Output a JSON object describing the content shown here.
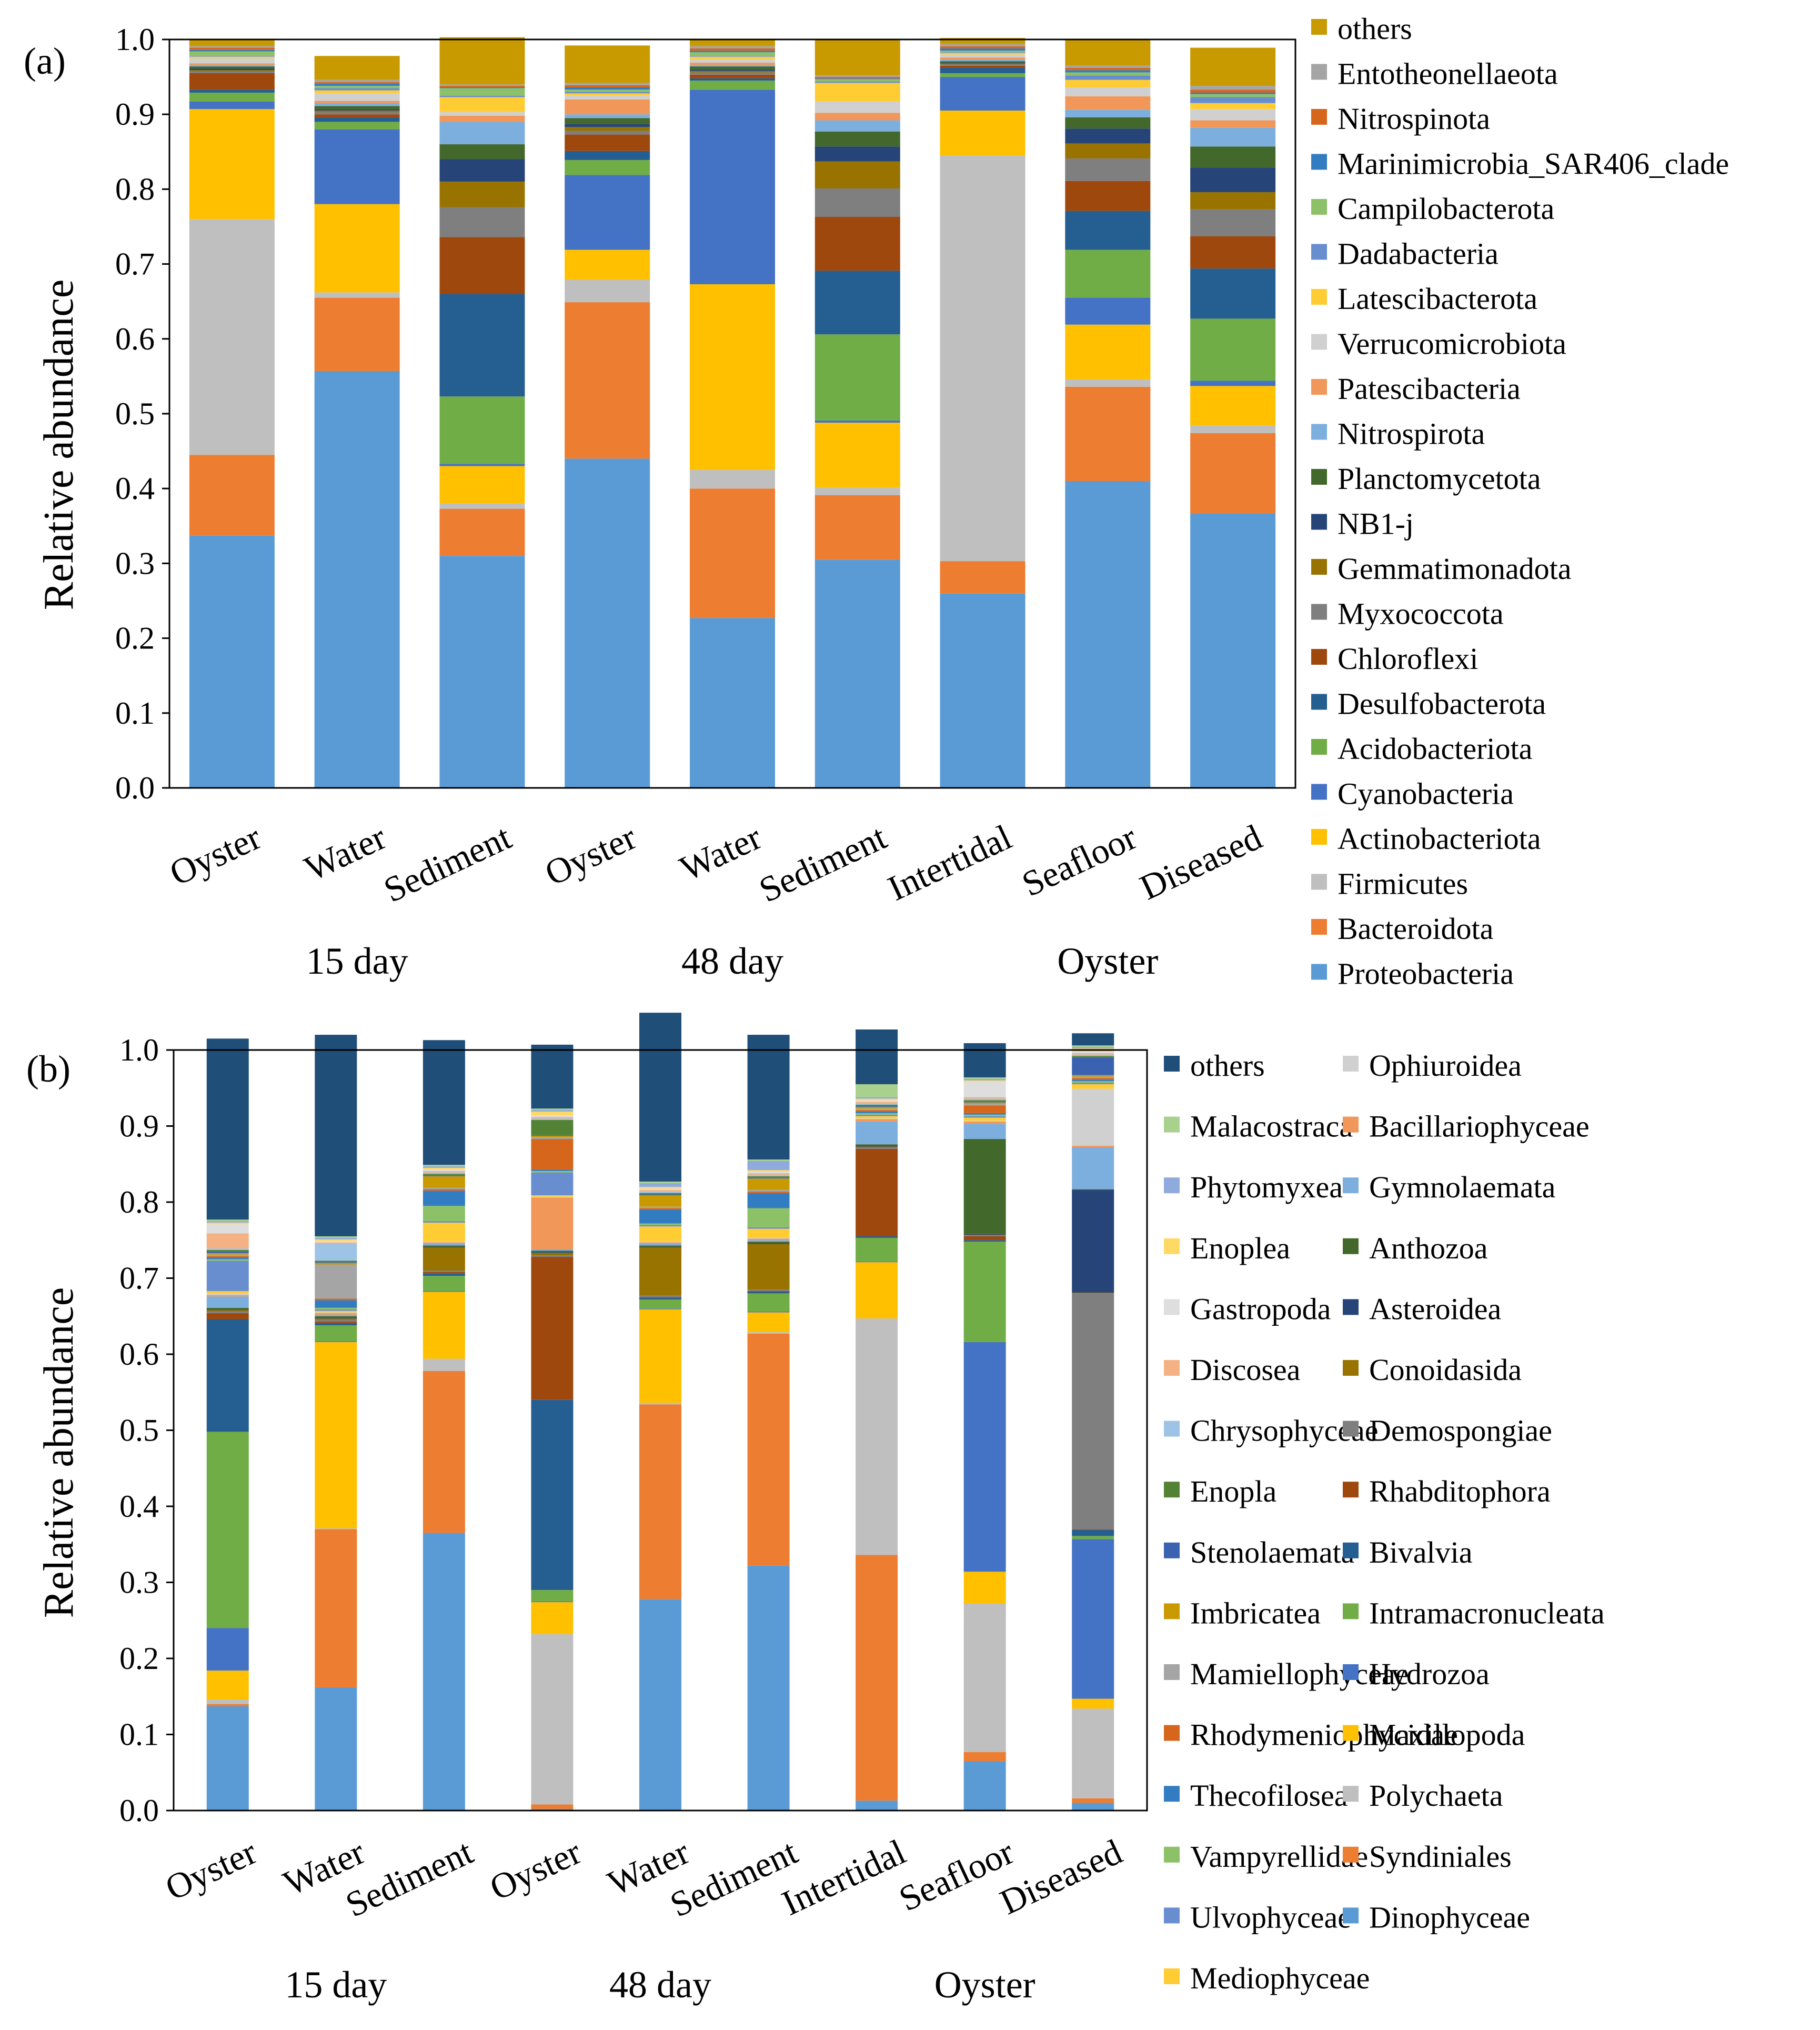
{
  "chart_data": [
    {
      "panel_label": "(a)",
      "type": "bar",
      "stacked": true,
      "ylabel": "Relative abundance",
      "ylim": [
        0,
        1.0
      ],
      "yticks": [
        "0.0",
        "0.1",
        "0.2",
        "0.3",
        "0.4",
        "0.5",
        "0.6",
        "0.7",
        "0.8",
        "0.9",
        "1.0"
      ],
      "categories": [
        "Oyster",
        "Water",
        "Sediment",
        "Oyster",
        "Water",
        "Sediment",
        "Intertidal",
        "Seafloor",
        "Diseased"
      ],
      "groups": [
        {
          "label": "15 day",
          "members": [
            0,
            1,
            2
          ]
        },
        {
          "label": "48 day",
          "members": [
            3,
            4,
            5
          ]
        },
        {
          "label": "Oyster",
          "members": [
            6,
            7,
            8
          ]
        }
      ],
      "series": [
        {
          "name": "Proteobacteria",
          "color": "#5b9bd5",
          "values": [
            0.337,
            0.557,
            0.31,
            0.44,
            0.227,
            0.305,
            0.26,
            0.41,
            0.367
          ]
        },
        {
          "name": "Bacteroidota",
          "color": "#ed7d31",
          "values": [
            0.108,
            0.098,
            0.063,
            0.209,
            0.173,
            0.086,
            0.043,
            0.126,
            0.107
          ]
        },
        {
          "name": "Firmicutes",
          "color": "#bfbfbf",
          "values": [
            0.315,
            0.007,
            0.007,
            0.03,
            0.025,
            0.01,
            0.542,
            0.01,
            0.01
          ]
        },
        {
          "name": "Actinobacteriota",
          "color": "#ffc000",
          "values": [
            0.147,
            0.118,
            0.05,
            0.04,
            0.248,
            0.087,
            0.06,
            0.073,
            0.053
          ]
        },
        {
          "name": "Cyanobacteria",
          "color": "#4472c4",
          "values": [
            0.01,
            0.1,
            0.003,
            0.1,
            0.26,
            0.003,
            0.045,
            0.036,
            0.007
          ]
        },
        {
          "name": "Acidobacteriota",
          "color": "#70ad47",
          "values": [
            0.012,
            0.01,
            0.09,
            0.02,
            0.012,
            0.115,
            0.005,
            0.064,
            0.083
          ]
        },
        {
          "name": "Desulfobacterota",
          "color": "#255e91",
          "values": [
            0.004,
            0.006,
            0.137,
            0.012,
            0.003,
            0.085,
            0.007,
            0.052,
            0.067
          ]
        },
        {
          "name": "Chloroflexi",
          "color": "#9e480e",
          "values": [
            0.022,
            0.004,
            0.076,
            0.022,
            0.005,
            0.072,
            0.003,
            0.04,
            0.043
          ]
        },
        {
          "name": "Myxococcota",
          "color": "#7f7f7f",
          "values": [
            0.002,
            0.003,
            0.04,
            0.005,
            0.003,
            0.038,
            0.002,
            0.03,
            0.036
          ]
        },
        {
          "name": "Gemmatimonadota",
          "color": "#997300",
          "values": [
            0.002,
            0.002,
            0.034,
            0.005,
            0.002,
            0.036,
            0.001,
            0.02,
            0.023
          ]
        },
        {
          "name": "NB1-j",
          "color": "#264478",
          "values": [
            0.002,
            0.002,
            0.03,
            0.004,
            0.002,
            0.02,
            0.001,
            0.02,
            0.033
          ]
        },
        {
          "name": "Planctomycetota",
          "color": "#43682b",
          "values": [
            0.003,
            0.004,
            0.02,
            0.008,
            0.004,
            0.02,
            0.002,
            0.015,
            0.028
          ]
        },
        {
          "name": "Nitrospirota",
          "color": "#7cafdd",
          "values": [
            0.002,
            0.004,
            0.03,
            0.005,
            0.002,
            0.015,
            0.002,
            0.01,
            0.025
          ]
        },
        {
          "name": "Patescibacteria",
          "color": "#f1975a",
          "values": [
            0.002,
            0.003,
            0.008,
            0.02,
            0.003,
            0.01,
            0.003,
            0.018,
            0.01
          ]
        },
        {
          "name": "Verrucomicrobiota",
          "color": "#d0d0d0",
          "values": [
            0.007,
            0.01,
            0.005,
            0.005,
            0.005,
            0.015,
            0.004,
            0.012,
            0.015
          ]
        },
        {
          "name": "Latescibacterota",
          "color": "#ffcd33",
          "values": [
            0.002,
            0.004,
            0.02,
            0.003,
            0.003,
            0.025,
            0.002,
            0.01,
            0.008
          ]
        },
        {
          "name": "Dadabacteria",
          "color": "#698ed0",
          "values": [
            0.001,
            0.003,
            0.002,
            0.002,
            0.001,
            0.002,
            0.001,
            0.006,
            0.008
          ]
        },
        {
          "name": "Campilobacterota",
          "color": "#8cc168",
          "values": [
            0.006,
            0.003,
            0.01,
            0.003,
            0.005,
            0.003,
            0.002,
            0.004,
            0.004
          ]
        },
        {
          "name": "Marinimicrobia_SAR406_clade",
          "color": "#327dc2",
          "values": [
            0.002,
            0.003,
            0.001,
            0.003,
            0.002,
            0.001,
            0.003,
            0.003,
            0.002
          ]
        },
        {
          "name": "Nitrospinota",
          "color": "#d6661c",
          "values": [
            0.003,
            0.002,
            0.002,
            0.003,
            0.003,
            0.002,
            0.003,
            0.003,
            0.004
          ]
        },
        {
          "name": "Entotheonellaeota",
          "color": "#a5a5a5",
          "values": [
            0.002,
            0.003,
            0.002,
            0.003,
            0.003,
            0.002,
            0.003,
            0.003,
            0.005
          ]
        },
        {
          "name": "others",
          "color": "#c99a00",
          "values": [
            0.01,
            0.032,
            0.063,
            0.05,
            0.008,
            0.048,
            0.008,
            0.035,
            0.051
          ]
        }
      ]
    },
    {
      "panel_label": "(b)",
      "type": "bar",
      "stacked": true,
      "ylabel": "Relative abundance",
      "ylim": [
        0,
        1.0
      ],
      "yticks": [
        "0.0",
        "0.1",
        "0.2",
        "0.3",
        "0.4",
        "0.5",
        "0.6",
        "0.7",
        "0.8",
        "0.9",
        "1.0"
      ],
      "categories": [
        "Oyster",
        "Water",
        "Sediment",
        "Oyster",
        "Water",
        "Sediment",
        "Intertidal",
        "Seafloor",
        "Diseased"
      ],
      "groups": [
        {
          "label": "15 day",
          "members": [
            0,
            1,
            2
          ]
        },
        {
          "label": "48 day",
          "members": [
            3,
            4,
            5
          ]
        },
        {
          "label": "Oyster",
          "members": [
            6,
            7,
            8
          ]
        }
      ],
      "series": [
        {
          "name": "Dinophyceae",
          "color": "#5b9bd5",
          "values": [
            0.137,
            0.162,
            0.365,
            0.002,
            0.278,
            0.322,
            0.013,
            0.065,
            0.01
          ]
        },
        {
          "name": "Syndiniales",
          "color": "#ed7d31",
          "values": [
            0.003,
            0.208,
            0.213,
            0.006,
            0.256,
            0.305,
            0.323,
            0.012,
            0.006
          ]
        },
        {
          "name": "Polychaeta",
          "color": "#bfbfbf",
          "values": [
            0.006,
            0.001,
            0.016,
            0.224,
            0.002,
            0.002,
            0.311,
            0.195,
            0.118
          ]
        },
        {
          "name": "Maxillopoda",
          "color": "#ffc000",
          "values": [
            0.038,
            0.245,
            0.088,
            0.042,
            0.123,
            0.026,
            0.074,
            0.042,
            0.013
          ]
        },
        {
          "name": "Hydrozoa",
          "color": "#4472c4",
          "values": [
            0.056,
            0.001,
            0.001,
            0.001,
            0.001,
            0.001,
            0.001,
            0.302,
            0.21
          ]
        },
        {
          "name": "Intramacronucleata",
          "color": "#70ad47",
          "values": [
            0.258,
            0.021,
            0.02,
            0.015,
            0.012,
            0.024,
            0.031,
            0.132,
            0.004
          ]
        },
        {
          "name": "Bivalvia",
          "color": "#255e91",
          "values": [
            0.148,
            0.003,
            0.003,
            0.25,
            0.002,
            0.002,
            0.002,
            0.002,
            0.008
          ]
        },
        {
          "name": "Rhabditophora",
          "color": "#9e480e",
          "values": [
            0.008,
            0.002,
            0.002,
            0.188,
            0.001,
            0.001,
            0.115,
            0.005,
            0.001
          ]
        },
        {
          "name": "Demospongiae",
          "color": "#7f7f7f",
          "values": [
            0.002,
            0.002,
            0.002,
            0.002,
            0.002,
            0.002,
            0.002,
            0.001,
            0.31
          ]
        },
        {
          "name": "Conoidasida",
          "color": "#997300",
          "values": [
            0.002,
            0.002,
            0.03,
            0.003,
            0.063,
            0.06,
            0.001,
            0.001,
            0.001
          ]
        },
        {
          "name": "Asteroidea",
          "color": "#264478",
          "values": [
            0.001,
            0.001,
            0.001,
            0.001,
            0.001,
            0.001,
            0.001,
            0.001,
            0.135
          ]
        },
        {
          "name": "Anthozoa",
          "color": "#43682b",
          "values": [
            0.002,
            0.002,
            0.002,
            0.002,
            0.002,
            0.002,
            0.002,
            0.125,
            0.001
          ]
        },
        {
          "name": "Gymnolaemata",
          "color": "#7cafdd",
          "values": [
            0.015,
            0.002,
            0.002,
            0.002,
            0.002,
            0.002,
            0.03,
            0.02,
            0.055
          ]
        },
        {
          "name": "Bacillariophyceae",
          "color": "#f1975a",
          "values": [
            0.002,
            0.002,
            0.002,
            0.068,
            0.002,
            0.002,
            0.003,
            0.003,
            0.002
          ]
        },
        {
          "name": "Ophiuroidea",
          "color": "#d0d0d0",
          "values": [
            0.002,
            0.001,
            0.001,
            0.001,
            0.001,
            0.001,
            0.001,
            0.001,
            0.075
          ]
        },
        {
          "name": "Mediophyceae",
          "color": "#ffcd33",
          "values": [
            0.003,
            0.002,
            0.025,
            0.002,
            0.02,
            0.012,
            0.003,
            0.004,
            0.006
          ]
        },
        {
          "name": "Ulvophyceae",
          "color": "#698ed0",
          "values": [
            0.04,
            0.002,
            0.002,
            0.03,
            0.002,
            0.002,
            0.002,
            0.002,
            0.002
          ]
        },
        {
          "name": "Vampyrellidae",
          "color": "#8cc168",
          "values": [
            0.002,
            0.002,
            0.02,
            0.002,
            0.002,
            0.025,
            0.002,
            0.002,
            0.002
          ]
        },
        {
          "name": "Thecofilosea",
          "color": "#327dc2",
          "values": [
            0.002,
            0.01,
            0.02,
            0.002,
            0.018,
            0.02,
            0.002,
            0.002,
            0.002
          ]
        },
        {
          "name": "Rhodymeniophycidae",
          "color": "#d6661c",
          "values": [
            0.002,
            0.002,
            0.002,
            0.04,
            0.002,
            0.002,
            0.002,
            0.01,
            0.002
          ]
        },
        {
          "name": "Mamiellophyceae",
          "color": "#a5a5a5",
          "values": [
            0.002,
            0.045,
            0.002,
            0.002,
            0.002,
            0.002,
            0.002,
            0.002,
            0.002
          ]
        },
        {
          "name": "Imbricatea",
          "color": "#c99a00",
          "values": [
            0.002,
            0.002,
            0.015,
            0.002,
            0.015,
            0.015,
            0.002,
            0.002,
            0.002
          ]
        },
        {
          "name": "Stenolaemata",
          "color": "#3b62b0",
          "values": [
            0.002,
            0.001,
            0.001,
            0.001,
            0.001,
            0.001,
            0.001,
            0.001,
            0.023
          ]
        },
        {
          "name": "Enopla",
          "color": "#548235",
          "values": [
            0.002,
            0.002,
            0.002,
            0.02,
            0.002,
            0.002,
            0.002,
            0.002,
            0.002
          ]
        },
        {
          "name": "Chrysophyceae",
          "color": "#9dc3e6",
          "values": [
            0.002,
            0.022,
            0.002,
            0.002,
            0.002,
            0.002,
            0.002,
            0.002,
            0.002
          ]
        },
        {
          "name": "Discosea",
          "color": "#f4b183",
          "values": [
            0.02,
            0.002,
            0.002,
            0.002,
            0.002,
            0.002,
            0.002,
            0.002,
            0.002
          ]
        },
        {
          "name": "Gastropoda",
          "color": "#dedede",
          "values": [
            0.012,
            0.002,
            0.002,
            0.002,
            0.002,
            0.002,
            0.002,
            0.02,
            0.002
          ]
        },
        {
          "name": "Enoplea",
          "color": "#ffd966",
          "values": [
            0.002,
            0.002,
            0.002,
            0.005,
            0.002,
            0.002,
            0.002,
            0.002,
            0.004
          ]
        },
        {
          "name": "Phytomyxea",
          "color": "#8faadc",
          "values": [
            0.002,
            0.002,
            0.002,
            0.002,
            0.005,
            0.012,
            0.002,
            0.002,
            0.002
          ]
        },
        {
          "name": "Malacostraca",
          "color": "#a9d18e",
          "values": [
            0.002,
            0.002,
            0.002,
            0.002,
            0.002,
            0.002,
            0.017,
            0.002,
            0.002
          ]
        },
        {
          "name": "others",
          "color": "#1f4e79",
          "values": [
            0.238,
            0.265,
            0.164,
            0.084,
            0.222,
            0.164,
            0.072,
            0.045,
            0.016
          ]
        }
      ]
    }
  ]
}
